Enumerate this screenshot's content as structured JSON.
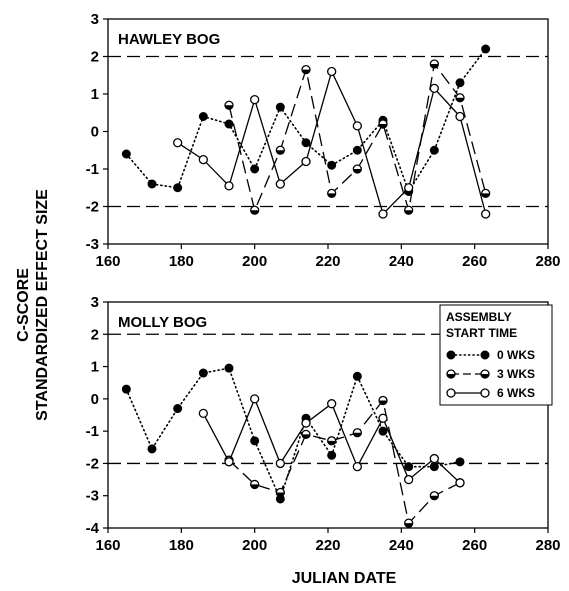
{
  "figure": {
    "ylabel_line1": "C-SCORE",
    "ylabel_line2": "STANDARDIZED EFFECT SIZE",
    "xlabel": "JULIAN DATE"
  },
  "legend": {
    "title_line1": "ASSEMBLY",
    "title_line2": "START TIME",
    "entries": [
      "0 WKS",
      "3 WKS",
      "6 WKS"
    ]
  },
  "chart_data": [
    {
      "type": "line",
      "title": "HAWLEY BOG",
      "xlim": [
        160,
        280
      ],
      "ylim": [
        -3,
        3
      ],
      "xticks": [
        160,
        180,
        200,
        220,
        240,
        260,
        280
      ],
      "yticks": [
        -3,
        -2,
        -1,
        0,
        1,
        2,
        3
      ],
      "reference_lines": [
        2,
        -2
      ],
      "series": [
        {
          "name": "0 WKS",
          "marker": "filled",
          "line": "dotted",
          "x": [
            165,
            172,
            179,
            186,
            193,
            200,
            207,
            214,
            221,
            228,
            235,
            242,
            249,
            256,
            263
          ],
          "y": [
            -0.6,
            -1.4,
            -1.5,
            0.4,
            0.2,
            -1.0,
            0.65,
            -0.3,
            -0.9,
            -0.5,
            0.3,
            -1.6,
            -0.5,
            1.3,
            2.2
          ]
        },
        {
          "name": "3 WKS",
          "marker": "half",
          "line": "long-dash",
          "x": [
            193,
            200,
            207,
            214,
            221,
            228,
            235,
            242,
            249,
            256,
            263
          ],
          "y": [
            0.7,
            -2.1,
            -0.5,
            1.65,
            -1.65,
            -1.0,
            0.2,
            -2.1,
            1.8,
            0.9,
            -1.65
          ]
        },
        {
          "name": "6 WKS",
          "marker": "open",
          "line": "solid",
          "x": [
            179,
            186,
            193,
            200,
            207,
            214,
            221,
            228,
            235,
            242,
            249,
            256,
            263
          ],
          "y": [
            -0.3,
            -0.75,
            -1.45,
            0.85,
            -1.4,
            -0.8,
            1.6,
            0.15,
            -2.2,
            -1.5,
            1.15,
            0.4,
            -2.2
          ]
        }
      ]
    },
    {
      "type": "line",
      "title": "MOLLY BOG",
      "xlim": [
        160,
        280
      ],
      "ylim": [
        -4,
        3
      ],
      "xticks": [
        160,
        180,
        200,
        220,
        240,
        260,
        280
      ],
      "yticks": [
        -4,
        -3,
        -2,
        -1,
        0,
        1,
        2,
        3
      ],
      "reference_lines": [
        2,
        -2
      ],
      "series": [
        {
          "name": "0 WKS",
          "marker": "filled",
          "line": "dotted",
          "x": [
            165,
            172,
            179,
            186,
            193,
            200,
            207,
            214,
            221,
            228,
            235,
            242,
            249,
            256
          ],
          "y": [
            0.3,
            -1.55,
            -0.3,
            0.8,
            0.95,
            -1.3,
            -3.1,
            -0.6,
            -1.75,
            0.7,
            -1.0,
            -2.1,
            -2.1,
            -1.95
          ]
        },
        {
          "name": "3 WKS",
          "marker": "half",
          "line": "long-dash",
          "x": [
            193,
            200,
            207,
            214,
            221,
            228,
            235,
            242,
            249,
            256
          ],
          "y": [
            -1.9,
            -2.65,
            -2.9,
            -1.1,
            -1.3,
            -1.05,
            -0.05,
            -3.85,
            -3.0,
            -2.6
          ]
        },
        {
          "name": "6 WKS",
          "marker": "open",
          "line": "solid",
          "x": [
            186,
            193,
            200,
            207,
            214,
            221,
            228,
            235,
            242,
            249,
            256
          ],
          "y": [
            -0.45,
            -1.95,
            0.0,
            -2.0,
            -0.75,
            -0.15,
            -2.1,
            -0.6,
            -2.5,
            -1.85,
            -2.6
          ]
        }
      ]
    }
  ]
}
